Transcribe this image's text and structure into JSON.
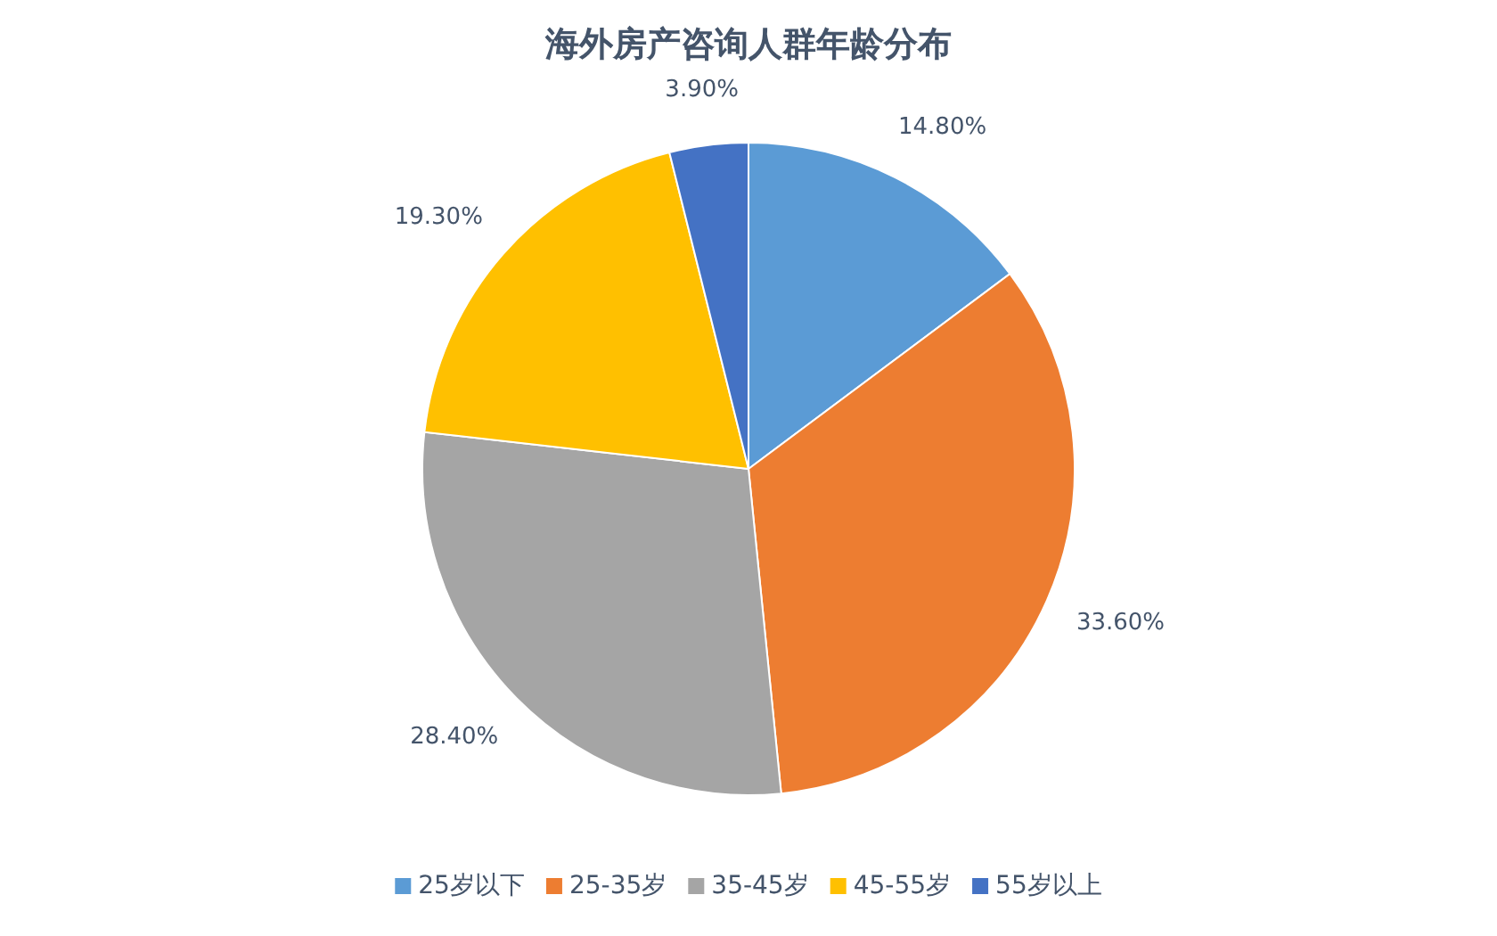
{
  "chart_data": {
    "type": "pie",
    "title": "海外房产咨询人群年龄分布",
    "categories": [
      "25岁以下",
      "25-35岁",
      "35-45岁",
      "45-55岁",
      "55岁以上"
    ],
    "values": [
      14.8,
      33.6,
      28.4,
      19.3,
      3.9
    ],
    "value_labels": [
      "14.80%",
      "33.60%",
      "28.40%",
      "19.30%",
      "3.90%"
    ],
    "colors": [
      "#5b9bd5",
      "#ed7d31",
      "#a5a5a5",
      "#ffc000",
      "#4472c4"
    ],
    "legend": "bottom"
  }
}
